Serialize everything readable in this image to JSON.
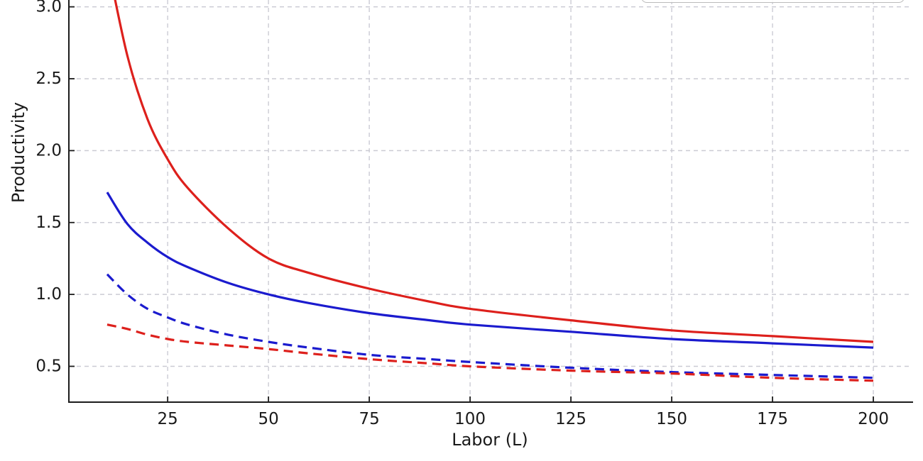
{
  "figure": {
    "xlabel": "Labor (L)",
    "ylabel": "Productivity",
    "colors": {
      "red_series": "#dd201c",
      "blue_series": "#1b1bce",
      "grid": "#cbcbd4",
      "axis": "#1c1c1c",
      "text": "#1a1a1a",
      "legend_border": "#bbbbbb"
    }
  },
  "chart_data": {
    "type": "line",
    "title": "",
    "xlabel": "Labor (L)",
    "ylabel": "Productivity",
    "xlim": [
      0.5,
      209.5
    ],
    "ylim_visible": [
      0.25,
      3.05
    ],
    "x_ticks": [
      25,
      50,
      75,
      100,
      125,
      150,
      175,
      200
    ],
    "x_tick_labels": [
      "25",
      "50",
      "75",
      "100",
      "125",
      "150",
      "175",
      "200"
    ],
    "y_ticks": [
      0.5,
      1.0,
      1.5,
      2.0,
      2.5,
      3.0
    ],
    "y_tick_labels": [
      "0.5",
      "1.0",
      "1.5",
      "2.0",
      "2.5",
      "3.0"
    ],
    "grid": true,
    "legend": {
      "position": "upper-right",
      "clipped": true,
      "note": "only the bottom edge of the legend box is visible at the top of the screenshot"
    },
    "x_samples": [
      10,
      15,
      20,
      25,
      30,
      40,
      50,
      60,
      75,
      90,
      100,
      125,
      150,
      175,
      200
    ],
    "series": [
      {
        "name": "red-solid",
        "color": "#dd201c",
        "line_style": "solid",
        "values": [
          3.32,
          2.66,
          2.22,
          1.94,
          1.74,
          1.46,
          1.25,
          1.15,
          1.04,
          0.95,
          0.9,
          0.82,
          0.75,
          0.71,
          0.67
        ]
      },
      {
        "name": "blue-solid",
        "color": "#1b1bce",
        "line_style": "solid",
        "values": [
          1.71,
          1.49,
          1.36,
          1.26,
          1.19,
          1.08,
          1.0,
          0.94,
          0.87,
          0.82,
          0.79,
          0.74,
          0.69,
          0.66,
          0.63
        ]
      },
      {
        "name": "blue-dashed",
        "color": "#1b1bce",
        "line_style": "dashed",
        "values": [
          1.14,
          1.0,
          0.9,
          0.84,
          0.79,
          0.72,
          0.67,
          0.63,
          0.58,
          0.55,
          0.53,
          0.49,
          0.46,
          0.44,
          0.42
        ]
      },
      {
        "name": "red-dashed",
        "color": "#dd201c",
        "line_style": "dashed",
        "values": [
          0.79,
          0.76,
          0.72,
          0.69,
          0.67,
          0.645,
          0.62,
          0.59,
          0.55,
          0.52,
          0.5,
          0.47,
          0.45,
          0.42,
          0.4
        ]
      }
    ]
  }
}
